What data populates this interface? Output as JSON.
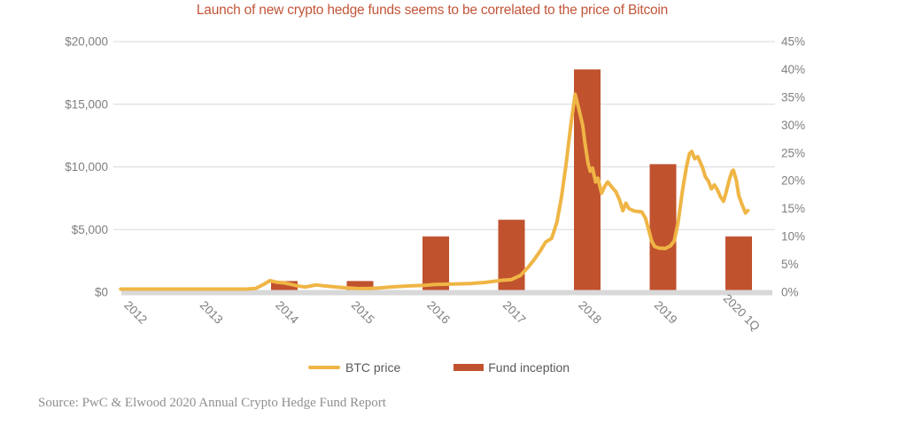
{
  "title": "Launch of new crypto hedge funds seems to be correlated to the price of Bitcoin",
  "source": "Source: PwC & Elwood 2020 Annual Crypto Hedge Fund Report",
  "colors": {
    "bar": "#C0522E",
    "line": "#EFB545",
    "title": "#C25539",
    "axis_text": "#7F7F7F",
    "legend_text": "#595959",
    "grid": "#D9D9D9",
    "baseline_band": "#D8D8D8",
    "source_text": "#8F8F8F"
  },
  "chart_data": {
    "type": "combo",
    "title": "Launch of new crypto hedge funds seems to be correlated to the price of Bitcoin",
    "categories": [
      "2012",
      "2013",
      "2014",
      "2015",
      "2016",
      "2017",
      "2018",
      "2019",
      "2020 1Q"
    ],
    "grid": "horizontal",
    "legend_position": "bottom",
    "left_axis": {
      "unit": "USD",
      "range": [
        0,
        20000
      ],
      "tick_values": [
        0,
        5000,
        10000,
        15000,
        20000
      ],
      "tick_labels": [
        "$0",
        "$5,000",
        "$10,000",
        "$15,000",
        "$20,000"
      ]
    },
    "right_axis": {
      "unit": "percent",
      "range": [
        0,
        45
      ],
      "tick_values": [
        0,
        5,
        10,
        15,
        20,
        25,
        30,
        35,
        40,
        45
      ],
      "tick_labels": [
        "0%",
        "5%",
        "10%",
        "15%",
        "20%",
        "25%",
        "30%",
        "35%",
        "40%",
        "45%"
      ]
    },
    "series": [
      {
        "name": "BTC price",
        "type": "line",
        "axis": "left",
        "unit": "USD",
        "points": [
          [
            -0.16,
            120
          ],
          [
            0.0,
            110
          ],
          [
            0.4,
            110
          ],
          [
            0.8,
            115
          ],
          [
            1.0,
            125
          ],
          [
            1.3,
            130
          ],
          [
            1.5,
            170
          ],
          [
            1.62,
            300
          ],
          [
            1.72,
            600
          ],
          [
            1.81,
            920
          ],
          [
            1.9,
            800
          ],
          [
            2.0,
            740
          ],
          [
            2.1,
            610
          ],
          [
            2.2,
            470
          ],
          [
            2.28,
            415
          ],
          [
            2.42,
            580
          ],
          [
            2.52,
            510
          ],
          [
            2.65,
            430
          ],
          [
            2.8,
            350
          ],
          [
            2.95,
            300
          ],
          [
            3.1,
            290
          ],
          [
            3.25,
            330
          ],
          [
            3.45,
            430
          ],
          [
            3.65,
            500
          ],
          [
            3.85,
            545
          ],
          [
            4.0,
            620
          ],
          [
            4.2,
            645
          ],
          [
            4.45,
            690
          ],
          [
            4.65,
            780
          ],
          [
            4.85,
            930
          ],
          [
            5.0,
            1010
          ],
          [
            5.12,
            1350
          ],
          [
            5.22,
            2000
          ],
          [
            5.3,
            2600
          ],
          [
            5.38,
            3300
          ],
          [
            5.45,
            4000
          ],
          [
            5.53,
            4300
          ],
          [
            5.6,
            5600
          ],
          [
            5.66,
            7600
          ],
          [
            5.72,
            10200
          ],
          [
            5.78,
            13200
          ],
          [
            5.84,
            15800
          ],
          [
            5.89,
            14600
          ],
          [
            5.94,
            13300
          ],
          [
            5.97,
            11900
          ],
          [
            6.01,
            10300
          ],
          [
            6.04,
            9650
          ],
          [
            6.07,
            9900
          ],
          [
            6.11,
            8800
          ],
          [
            6.14,
            9100
          ],
          [
            6.19,
            7900
          ],
          [
            6.23,
            8450
          ],
          [
            6.27,
            8800
          ],
          [
            6.33,
            8350
          ],
          [
            6.38,
            8000
          ],
          [
            6.43,
            7300
          ],
          [
            6.47,
            6500
          ],
          [
            6.51,
            7100
          ],
          [
            6.55,
            6680
          ],
          [
            6.62,
            6480
          ],
          [
            6.72,
            6400
          ],
          [
            6.77,
            5900
          ],
          [
            6.81,
            5000
          ],
          [
            6.85,
            4100
          ],
          [
            6.89,
            3650
          ],
          [
            6.95,
            3520
          ],
          [
            7.03,
            3490
          ],
          [
            7.1,
            3700
          ],
          [
            7.15,
            4100
          ],
          [
            7.2,
            5600
          ],
          [
            7.26,
            8200
          ],
          [
            7.31,
            10000
          ],
          [
            7.35,
            11050
          ],
          [
            7.38,
            11230
          ],
          [
            7.42,
            10650
          ],
          [
            7.46,
            10820
          ],
          [
            7.52,
            9980
          ],
          [
            7.56,
            9200
          ],
          [
            7.6,
            8860
          ],
          [
            7.64,
            8250
          ],
          [
            7.68,
            8560
          ],
          [
            7.72,
            8150
          ],
          [
            7.76,
            7600
          ],
          [
            7.8,
            7260
          ],
          [
            7.83,
            7900
          ],
          [
            7.88,
            9050
          ],
          [
            7.91,
            9620
          ],
          [
            7.93,
            9740
          ],
          [
            7.97,
            8900
          ],
          [
            8.0,
            7730
          ],
          [
            8.05,
            6900
          ],
          [
            8.09,
            6320
          ],
          [
            8.12,
            6520
          ]
        ]
      },
      {
        "name": "Fund inception",
        "type": "bar",
        "axis": "right",
        "unit": "%",
        "values": [
          0,
          0,
          2,
          2,
          10,
          13,
          40,
          23,
          10
        ]
      }
    ]
  }
}
